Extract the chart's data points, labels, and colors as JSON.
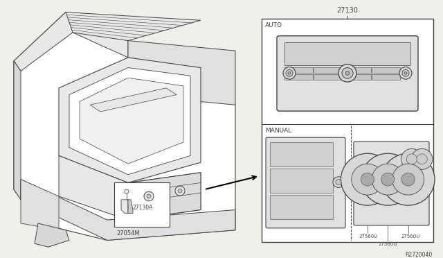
{
  "bg_color": "#f0f0eb",
  "line_color": "#404040",
  "part_number_main": "27130",
  "part_27054M": "27054M",
  "part_27130A": "27130A",
  "ref_code": "R2720040",
  "label_auto": "AUTO",
  "label_manual": "MANUAL"
}
